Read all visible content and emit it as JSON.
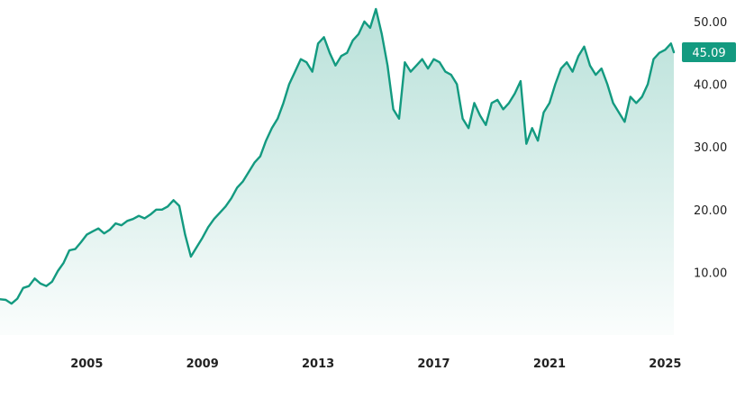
{
  "chart_data": {
    "type": "area",
    "title": "",
    "xlabel": "",
    "ylabel": "",
    "xlim": [
      2002.0,
      2025.3
    ],
    "ylim": [
      0,
      52
    ],
    "y_ticks": [
      10,
      20,
      30,
      40,
      50
    ],
    "y_tick_labels": [
      "10.00",
      "20.00",
      "30.00",
      "40.00",
      "50.00"
    ],
    "x_ticks": [
      2005,
      2009,
      2013,
      2017,
      2021,
      2025
    ],
    "x_tick_labels": [
      "2005",
      "2009",
      "2013",
      "2017",
      "2021",
      "2025"
    ],
    "y_axis_position": "right",
    "grid": false,
    "line_color": "#139a80",
    "fill_color": "#139a80",
    "last_value_label": "45.09",
    "series": [
      {
        "x": [
          2002.0,
          2002.2,
          2002.4,
          2002.6,
          2002.8,
          2003.0,
          2003.2,
          2003.4,
          2003.6,
          2003.8,
          2004.0,
          2004.2,
          2004.4,
          2004.6,
          2004.8,
          2005.0,
          2005.2,
          2005.4,
          2005.6,
          2005.8,
          2006.0,
          2006.2,
          2006.4,
          2006.6,
          2006.8,
          2007.0,
          2007.2,
          2007.4,
          2007.6,
          2007.8,
          2008.0,
          2008.2,
          2008.4,
          2008.6,
          2008.8,
          2009.0,
          2009.2,
          2009.4,
          2009.6,
          2009.8,
          2010.0,
          2010.2,
          2010.4,
          2010.6,
          2010.8,
          2011.0,
          2011.2,
          2011.4,
          2011.6,
          2011.8,
          2012.0,
          2012.2,
          2012.4,
          2012.6,
          2012.8,
          2013.0,
          2013.2,
          2013.4,
          2013.6,
          2013.8,
          2014.0,
          2014.2,
          2014.4,
          2014.6,
          2014.8,
          2015.0,
          2015.2,
          2015.4,
          2015.6,
          2015.8,
          2016.0,
          2016.2,
          2016.4,
          2016.6,
          2016.8,
          2017.0,
          2017.2,
          2017.4,
          2017.6,
          2017.8,
          2018.0,
          2018.2,
          2018.4,
          2018.6,
          2018.8,
          2019.0,
          2019.2,
          2019.4,
          2019.6,
          2019.8,
          2020.0,
          2020.2,
          2020.4,
          2020.6,
          2020.8,
          2021.0,
          2021.2,
          2021.4,
          2021.6,
          2021.8,
          2022.0,
          2022.2,
          2022.4,
          2022.6,
          2022.8,
          2023.0,
          2023.2,
          2023.4,
          2023.6,
          2023.8,
          2024.0,
          2024.2,
          2024.4,
          2024.6,
          2024.8,
          2025.0,
          2025.2,
          2025.3
        ],
        "values": [
          5.7,
          5.6,
          5.0,
          5.8,
          7.5,
          7.8,
          9.0,
          8.2,
          7.8,
          8.5,
          10.2,
          11.5,
          13.5,
          13.7,
          14.8,
          16.0,
          16.5,
          17.0,
          16.2,
          16.8,
          17.8,
          17.5,
          18.2,
          18.5,
          19.0,
          18.6,
          19.2,
          20.0,
          20.0,
          20.5,
          21.5,
          20.6,
          16.0,
          12.5,
          14.0,
          15.5,
          17.2,
          18.5,
          19.5,
          20.5,
          21.8,
          23.5,
          24.5,
          26.0,
          27.5,
          28.5,
          31.0,
          33.0,
          34.5,
          37.0,
          40.0,
          42.0,
          44.0,
          43.5,
          42.0,
          46.5,
          47.5,
          45.0,
          43.0,
          44.5,
          45.0,
          47.0,
          48.0,
          50.0,
          49.0,
          52.0,
          48.0,
          43.0,
          36.0,
          34.5,
          43.5,
          42.0,
          43.0,
          44.0,
          42.5,
          44.0,
          43.5,
          42.0,
          41.5,
          40.0,
          34.5,
          33.0,
          37.0,
          35.0,
          33.5,
          37.0,
          37.5,
          36.0,
          37.0,
          38.5,
          40.5,
          30.5,
          33.0,
          31.0,
          35.5,
          37.0,
          40.0,
          42.5,
          43.5,
          42.0,
          44.5,
          46.0,
          43.0,
          41.5,
          42.5,
          40.0,
          37.0,
          35.5,
          34.0,
          38.0,
          37.0,
          38.0,
          40.0,
          44.0,
          45.0,
          45.5,
          46.5,
          45.1
        ]
      }
    ]
  }
}
